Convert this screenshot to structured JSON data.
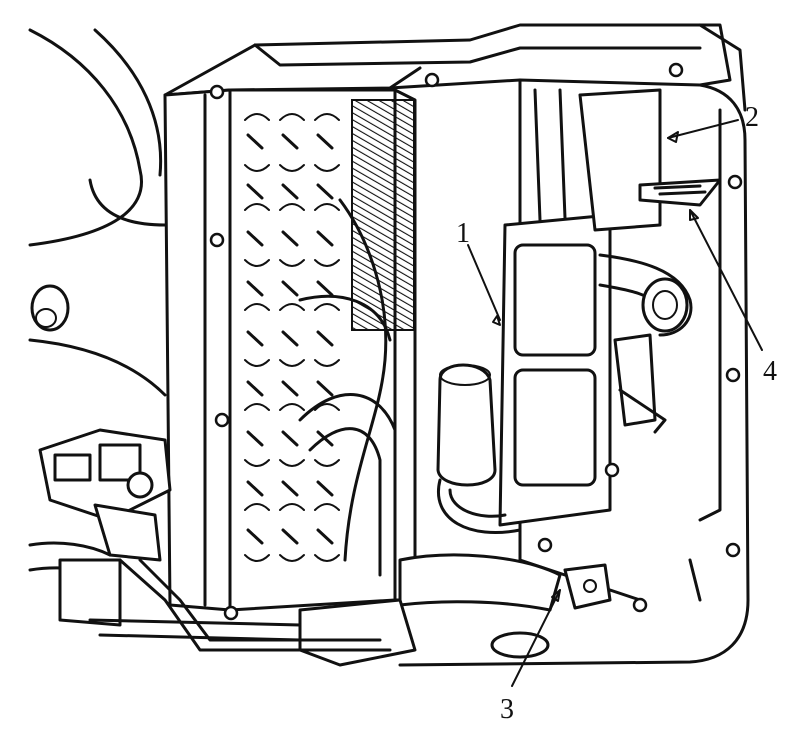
{
  "callouts": [
    {
      "id": "1",
      "label": "1"
    },
    {
      "id": "2",
      "label": "2"
    },
    {
      "id": "3",
      "label": "3"
    },
    {
      "id": "4",
      "label": "4"
    }
  ],
  "colors": {
    "ink": "#111111",
    "paper": "#ffffff"
  }
}
